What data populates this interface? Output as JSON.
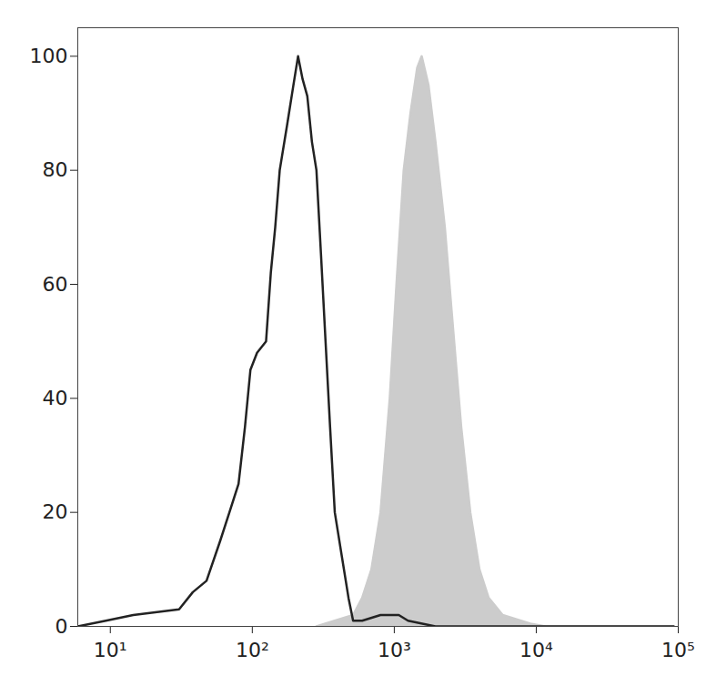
{
  "chart_data": {
    "type": "line",
    "log": "x",
    "grid": false,
    "xlim": [
      5.9,
      100000
    ],
    "xticks": [
      {
        "value": 10,
        "label": "10¹"
      },
      {
        "value": 100,
        "label": "10²"
      },
      {
        "value": 1000,
        "label": "10³"
      },
      {
        "value": 10000,
        "label": "10⁴"
      },
      {
        "value": 100000,
        "label": "10⁵"
      }
    ],
    "ylim": [
      0,
      105
    ],
    "yticks": [
      0,
      20,
      40,
      60,
      80,
      100
    ],
    "series": [
      {
        "type": "area",
        "color": "#cccccc",
        "x": [
          283,
          513,
          594,
          690,
          800,
          929,
          1036,
          1165,
          1300,
          1450,
          1560,
          1740,
          1950,
          2270,
          2540,
          2960,
          3430,
          3980,
          4620,
          5800,
          9090,
          11600,
          92900
        ],
        "values": [
          0,
          2,
          5,
          10,
          20,
          40,
          60,
          80,
          90,
          98,
          100,
          95,
          85,
          70,
          55,
          35,
          20,
          10,
          5,
          2,
          0.5,
          0,
          0
        ]
      },
      {
        "type": "line",
        "color": "#222222",
        "x": [
          5.9,
          9.3,
          14.5,
          30.5,
          38.1,
          47.6,
          59.4,
          69,
          80,
          88.8,
          97,
          108,
          125,
          135,
          145,
          156,
          176,
          195,
          210,
          226,
          244,
          263,
          283,
          305,
          328,
          353,
          381,
          429,
          476,
          513,
          594,
          800,
          1076,
          1250,
          1950,
          92900
        ],
        "values": [
          0,
          1,
          2,
          3,
          6,
          8,
          15,
          20,
          25,
          35,
          45,
          48,
          50,
          62,
          70,
          80,
          88,
          95,
          100,
          96,
          93,
          85,
          80,
          65,
          50,
          35,
          20,
          12,
          5,
          1,
          1,
          2,
          2,
          1,
          0,
          0
        ]
      }
    ]
  }
}
